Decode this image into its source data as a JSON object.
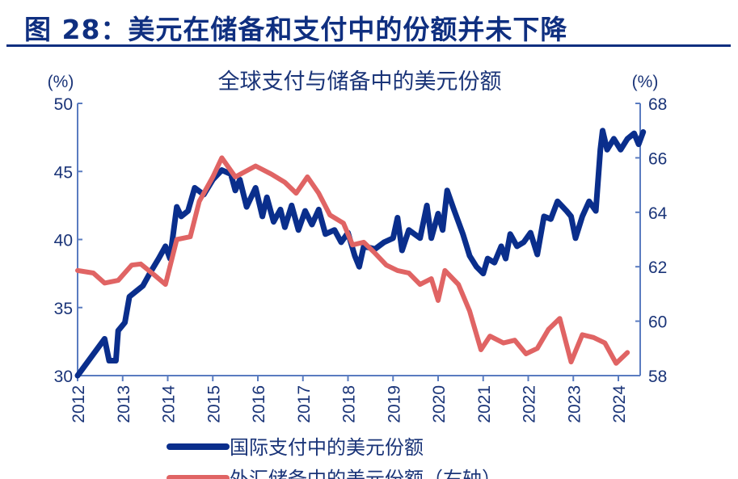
{
  "figure_title": "图 28：美元在储备和支付中的份额并未下降",
  "chart_data": {
    "type": "line",
    "title": "全球支付与储备中的美元份额",
    "left_unit": "(%)",
    "right_unit": "(%)",
    "ylim_left": [
      30,
      50
    ],
    "ylim_right": [
      58,
      68
    ],
    "yticks_left": [
      "30",
      "35",
      "40",
      "45",
      "50"
    ],
    "yticks_right": [
      "58",
      "60",
      "62",
      "64",
      "66",
      "68"
    ],
    "xlim": [
      2012,
      2024.6
    ],
    "xticks": [
      "2012",
      "2013",
      "2014",
      "2015",
      "2016",
      "2017",
      "2018",
      "2019",
      "2020",
      "2021",
      "2022",
      "2023",
      "2024"
    ],
    "colors": {
      "blue": "#0a2e8c",
      "red": "#e06464",
      "axis": "#5a7cc0"
    },
    "series": [
      {
        "name": "国际支付中的美元份额",
        "axis": "left",
        "color": "#0a2e8c",
        "x": [
          2012.0,
          2012.6,
          2012.7,
          2012.85,
          2012.9,
          2013.05,
          2013.15,
          2013.3,
          2013.45,
          2013.6,
          2013.8,
          2013.95,
          2014.05,
          2014.2,
          2014.3,
          2014.45,
          2014.6,
          2014.8,
          2015.0,
          2015.2,
          2015.4,
          2015.5,
          2015.6,
          2015.75,
          2015.95,
          2016.1,
          2016.2,
          2016.35,
          2016.5,
          2016.6,
          2016.75,
          2016.9,
          2017.05,
          2017.2,
          2017.35,
          2017.5,
          2017.7,
          2017.85,
          2018.0,
          2018.15,
          2018.25,
          2018.35,
          2018.6,
          2018.8,
          2019.0,
          2019.1,
          2019.2,
          2019.35,
          2019.6,
          2019.75,
          2019.85,
          2020.0,
          2020.1,
          2020.2,
          2020.35,
          2020.55,
          2020.7,
          2020.85,
          2021.0,
          2021.1,
          2021.25,
          2021.4,
          2021.5,
          2021.6,
          2021.75,
          2021.9,
          2022.05,
          2022.2,
          2022.35,
          2022.5,
          2022.65,
          2022.85,
          2022.95,
          2023.05,
          2023.2,
          2023.35,
          2023.5,
          2023.6,
          2023.65,
          2023.75,
          2023.9,
          2024.05,
          2024.2,
          2024.35,
          2024.45,
          2024.55
        ],
        "values": [
          30.0,
          32.7,
          31.1,
          31.1,
          33.3,
          33.9,
          35.8,
          36.2,
          36.6,
          37.5,
          38.6,
          39.5,
          38.6,
          42.4,
          41.7,
          42.1,
          43.8,
          43.3,
          44.4,
          45.1,
          44.8,
          43.6,
          44.4,
          42.4,
          43.8,
          41.7,
          43.1,
          41.3,
          42.2,
          40.9,
          42.5,
          40.7,
          42.1,
          41.1,
          42.2,
          40.4,
          40.7,
          39.8,
          40.5,
          38.8,
          38.0,
          39.5,
          39.3,
          39.8,
          40.1,
          41.6,
          39.2,
          40.7,
          40.1,
          42.5,
          40.1,
          41.9,
          40.7,
          43.6,
          42.2,
          40.4,
          38.8,
          38.0,
          37.5,
          38.6,
          38.3,
          39.5,
          38.6,
          40.4,
          39.5,
          39.8,
          40.5,
          38.9,
          41.7,
          41.5,
          42.8,
          42.1,
          41.7,
          40.1,
          41.7,
          42.8,
          42.1,
          46.6,
          48.0,
          46.6,
          47.4,
          46.6,
          47.4,
          47.8,
          47.0,
          47.9
        ]
      },
      {
        "name": "外汇储备中的美元份额（右轴）",
        "axis": "right",
        "color": "#e06464",
        "x": [
          2012.0,
          2012.35,
          2012.6,
          2012.9,
          2013.2,
          2013.4,
          2013.7,
          2013.95,
          2014.2,
          2014.5,
          2014.7,
          2015.0,
          2015.2,
          2015.5,
          2015.95,
          2016.3,
          2016.6,
          2016.85,
          2017.1,
          2017.35,
          2017.6,
          2017.9,
          2018.1,
          2018.35,
          2018.6,
          2018.85,
          2019.1,
          2019.35,
          2019.6,
          2019.85,
          2020.0,
          2020.15,
          2020.45,
          2020.7,
          2020.95,
          2021.15,
          2021.45,
          2021.7,
          2021.95,
          2022.2,
          2022.45,
          2022.7,
          2022.95,
          2023.2,
          2023.45,
          2023.7,
          2023.95,
          2024.2
        ],
        "values": [
          61.86,
          61.77,
          61.4,
          61.5,
          62.06,
          62.1,
          61.7,
          61.35,
          63.0,
          63.1,
          64.4,
          65.3,
          66.0,
          65.3,
          65.7,
          65.4,
          65.1,
          64.7,
          65.3,
          64.7,
          63.9,
          63.6,
          62.8,
          62.9,
          62.5,
          62.06,
          61.86,
          61.77,
          61.35,
          61.56,
          60.76,
          61.86,
          61.35,
          60.37,
          58.95,
          59.45,
          59.2,
          59.3,
          58.8,
          59.0,
          59.7,
          60.1,
          58.5,
          59.5,
          59.4,
          59.2,
          58.45,
          58.85
        ]
      }
    ],
    "legend": [
      "国际支付中的美元份额",
      "外汇储备中的美元份额（右轴）"
    ],
    "legend_placement": "bottom"
  }
}
